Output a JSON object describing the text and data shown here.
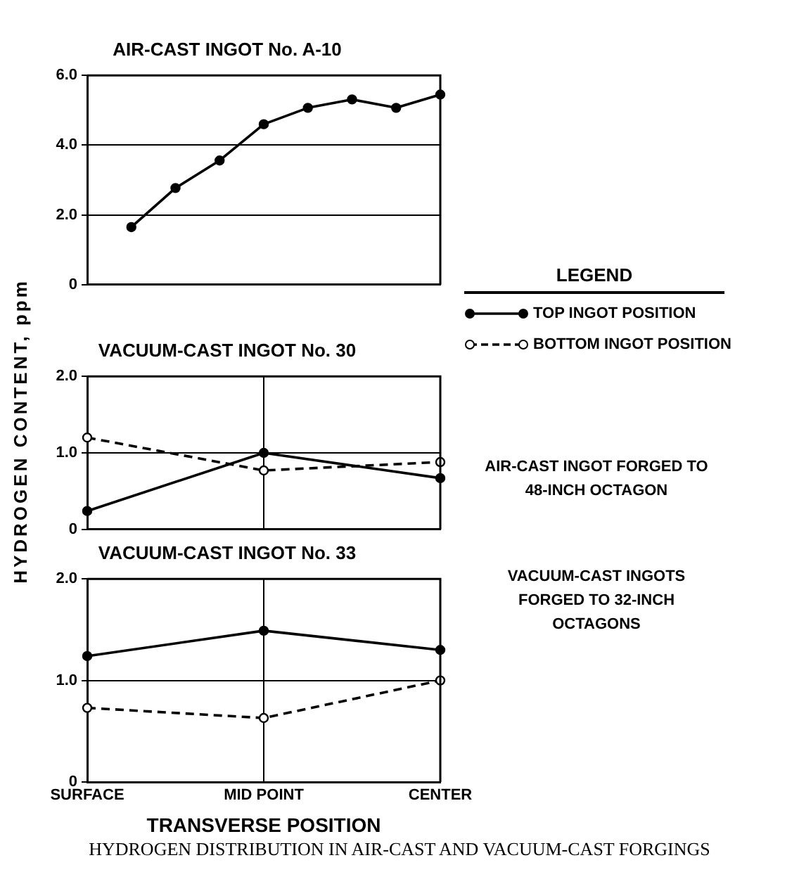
{
  "chart_data": [
    {
      "type": "line",
      "title": "AIR-CAST INGOT No. A-10",
      "categories": [
        null,
        null,
        null,
        null,
        null,
        null,
        null,
        null,
        null
      ],
      "ylim": [
        0,
        6.0
      ],
      "yticks": [
        {
          "value": 0,
          "label": "0"
        },
        {
          "value": 2,
          "label": "2.0"
        },
        {
          "value": 4,
          "label": "4.0"
        },
        {
          "value": 6,
          "label": "6.0"
        }
      ],
      "tick_labels": "y",
      "grid": "y",
      "marker": "circle",
      "series": [
        {
          "color": "#000000",
          "line_style": "solid",
          "values": [
            null,
            1.65,
            2.77,
            3.56,
            4.6,
            5.07,
            5.31,
            5.07,
            5.45
          ]
        }
      ]
    },
    {
      "type": "line",
      "title": "VACUUM-CAST INGOT No. 30",
      "ylabel": "HYDROGEN CONTENT, ppm",
      "categories": [
        null,
        null,
        null
      ],
      "ylim": [
        0,
        2
      ],
      "yticks": [
        {
          "value": 0,
          "label": "0"
        },
        {
          "value": 1,
          "label": "1.0"
        },
        {
          "value": 2,
          "label": "2.0"
        }
      ],
      "tick_labels": "y",
      "grid": true,
      "marker": "circle",
      "legend": "right",
      "legend_title": "LEGEND",
      "annotations": [
        "AIR-CAST INGOT FORGED TO 48-INCH OCTAGON"
      ],
      "series": [
        {
          "name": "TOP INGOT POSITION",
          "color": "#000000",
          "line_style": "solid",
          "values": [
            0.24,
            1.0,
            0.67
          ]
        },
        {
          "name": "BOTTOM INGOT POSITION",
          "color": "#000000",
          "line_style": "dashed",
          "values": [
            1.2,
            0.77,
            0.88
          ]
        }
      ]
    },
    {
      "type": "line",
      "title": "VACUUM-CAST INGOT No. 33",
      "xlabel": "TRANSVERSE POSITION",
      "categories": [
        "SURFACE",
        "MID POINT",
        "CENTER"
      ],
      "ylim": [
        0,
        2
      ],
      "yticks": [
        {
          "value": 0,
          "label": "0"
        },
        {
          "value": 1,
          "label": "1.0"
        },
        {
          "value": 2,
          "label": "2.0"
        }
      ],
      "grid": true,
      "marker": "circle",
      "annotations": [
        "VACUUM-CAST INGOTS FORGED TO 32-INCH OCTAGONS",
        "HYDROGEN DISTRIBUTION IN AIR-CAST AND VACUUM-CAST FORGINGS"
      ],
      "series": [
        {
          "color": "#000000",
          "line_style": "solid",
          "values": [
            1.24,
            1.49,
            1.3
          ]
        },
        {
          "color": "#000000",
          "line_style": "dashed",
          "values": [
            0.73,
            0.63,
            1.0
          ]
        }
      ]
    }
  ]
}
